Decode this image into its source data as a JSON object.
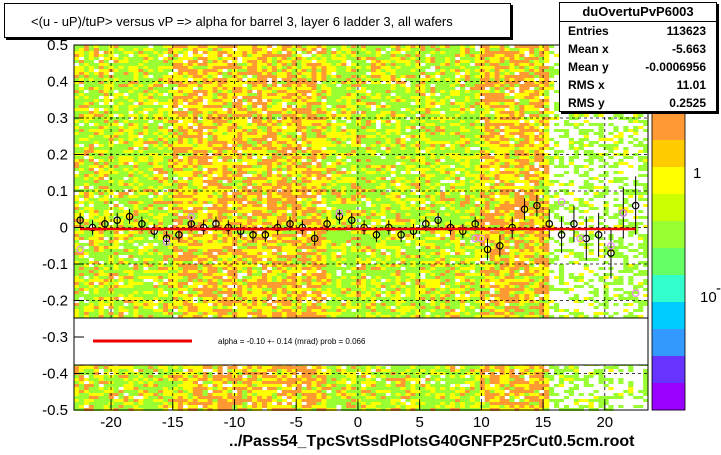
{
  "title": "<(u - uP)/tuP> versus  vP => alpha for barrel 3, layer 6 ladder 3, all wafers",
  "stats": {
    "name": "duOvertuPvP6003",
    "rows": [
      {
        "key": "Entries",
        "value": "113623"
      },
      {
        "key": "Mean x",
        "value": "-5.663"
      },
      {
        "key": "Mean y",
        "value": "-0.0006956"
      },
      {
        "key": "RMS x",
        "value": "11.01"
      },
      {
        "key": "RMS y",
        "value": "0.2525"
      }
    ]
  },
  "footer": "../Pass54_TpcSvtSsdPlotsG40GNFP25rCut0.5cm.root",
  "colorbar_labels": [
    "1",
    "10"
  ],
  "colorbar_exponent": "-1",
  "fit_label": "alpha =   -0.10 +-  0.14 (mrad) prob = 0.066",
  "colors": {
    "fit_line": "#ee0000",
    "heat_low": "#99ff33",
    "heat_mid": "#ffff00",
    "heat_high": "#ff9933",
    "marker_black": "#000000",
    "marker_pink": "#ee88ee"
  },
  "chart_data": {
    "type": "heatmap",
    "xlim": [
      -23,
      23.5
    ],
    "ylim": [
      -0.5,
      0.5
    ],
    "x_ticks": [
      -20,
      -15,
      -10,
      -5,
      0,
      5,
      10,
      15,
      20
    ],
    "y_ticks": [
      -0.5,
      -0.4,
      -0.3,
      -0.2,
      -0.1,
      0,
      0.1,
      0.2,
      0.3,
      0.4,
      0.5
    ],
    "grid": true,
    "fit": {
      "slope": 0,
      "intercept": -0.004
    },
    "profile": [
      {
        "x": -22.5,
        "y": 0.02,
        "e": 0.02
      },
      {
        "x": -21.5,
        "y": 0.0,
        "e": 0.02
      },
      {
        "x": -20.5,
        "y": 0.01,
        "e": 0.02
      },
      {
        "x": -19.5,
        "y": 0.02,
        "e": 0.02
      },
      {
        "x": -18.5,
        "y": 0.03,
        "e": 0.02
      },
      {
        "x": -17.5,
        "y": 0.01,
        "e": 0.02
      },
      {
        "x": -16.5,
        "y": -0.01,
        "e": 0.02
      },
      {
        "x": -15.5,
        "y": -0.03,
        "e": 0.02
      },
      {
        "x": -14.5,
        "y": -0.02,
        "e": 0.02
      },
      {
        "x": -13.5,
        "y": 0.01,
        "e": 0.02
      },
      {
        "x": -12.5,
        "y": 0.0,
        "e": 0.02
      },
      {
        "x": -11.5,
        "y": 0.01,
        "e": 0.02
      },
      {
        "x": -10.5,
        "y": 0.0,
        "e": 0.02
      },
      {
        "x": -9.5,
        "y": -0.01,
        "e": 0.02
      },
      {
        "x": -8.5,
        "y": -0.02,
        "e": 0.02
      },
      {
        "x": -7.5,
        "y": -0.02,
        "e": 0.02
      },
      {
        "x": -6.5,
        "y": 0.0,
        "e": 0.02
      },
      {
        "x": -5.5,
        "y": 0.01,
        "e": 0.02
      },
      {
        "x": -4.5,
        "y": 0.0,
        "e": 0.02
      },
      {
        "x": -3.5,
        "y": -0.03,
        "e": 0.02
      },
      {
        "x": -2.5,
        "y": 0.01,
        "e": 0.02
      },
      {
        "x": -1.5,
        "y": 0.03,
        "e": 0.02
      },
      {
        "x": -0.5,
        "y": 0.02,
        "e": 0.02
      },
      {
        "x": 0.5,
        "y": 0.0,
        "e": 0.02
      },
      {
        "x": 1.5,
        "y": -0.02,
        "e": 0.02
      },
      {
        "x": 2.5,
        "y": 0.0,
        "e": 0.02
      },
      {
        "x": 3.5,
        "y": -0.02,
        "e": 0.02
      },
      {
        "x": 4.5,
        "y": -0.01,
        "e": 0.02
      },
      {
        "x": 5.5,
        "y": 0.01,
        "e": 0.02
      },
      {
        "x": 6.5,
        "y": 0.02,
        "e": 0.02
      },
      {
        "x": 7.5,
        "y": 0.0,
        "e": 0.02
      },
      {
        "x": 8.5,
        "y": -0.01,
        "e": 0.02
      },
      {
        "x": 9.5,
        "y": 0.01,
        "e": 0.02
      },
      {
        "x": 10.5,
        "y": -0.06,
        "e": 0.03
      },
      {
        "x": 11.5,
        "y": -0.05,
        "e": 0.03
      },
      {
        "x": 12.5,
        "y": 0.0,
        "e": 0.03
      },
      {
        "x": 13.5,
        "y": 0.05,
        "e": 0.03
      },
      {
        "x": 14.5,
        "y": 0.06,
        "e": 0.03
      },
      {
        "x": 15.5,
        "y": 0.01,
        "e": 0.04
      },
      {
        "x": 16.5,
        "y": -0.02,
        "e": 0.05
      },
      {
        "x": 17.5,
        "y": 0.01,
        "e": 0.05
      },
      {
        "x": 18.5,
        "y": -0.03,
        "e": 0.06
      },
      {
        "x": 19.5,
        "y": -0.02,
        "e": 0.06
      },
      {
        "x": 20.5,
        "y": -0.07,
        "e": 0.07
      },
      {
        "x": 21.5,
        "y": 0.04,
        "e": 0.07
      },
      {
        "x": 22.5,
        "y": 0.06,
        "e": 0.08
      }
    ],
    "profile_pink": [
      {
        "x": -22.5,
        "y": -0.06
      },
      {
        "x": -15.5,
        "y": -0.04
      },
      {
        "x": -13.5,
        "y": 0.03
      },
      {
        "x": -1.5,
        "y": 0.04
      },
      {
        "x": 9.5,
        "y": -0.03
      },
      {
        "x": 10.0,
        "y": -0.03
      },
      {
        "x": 16.5,
        "y": 0.07
      },
      {
        "x": 18.0,
        "y": -0.03
      },
      {
        "x": 20.5,
        "y": -0.05
      },
      {
        "x": 21.5,
        "y": 0.04
      },
      {
        "x": 22.5,
        "y": -0.18
      }
    ]
  }
}
